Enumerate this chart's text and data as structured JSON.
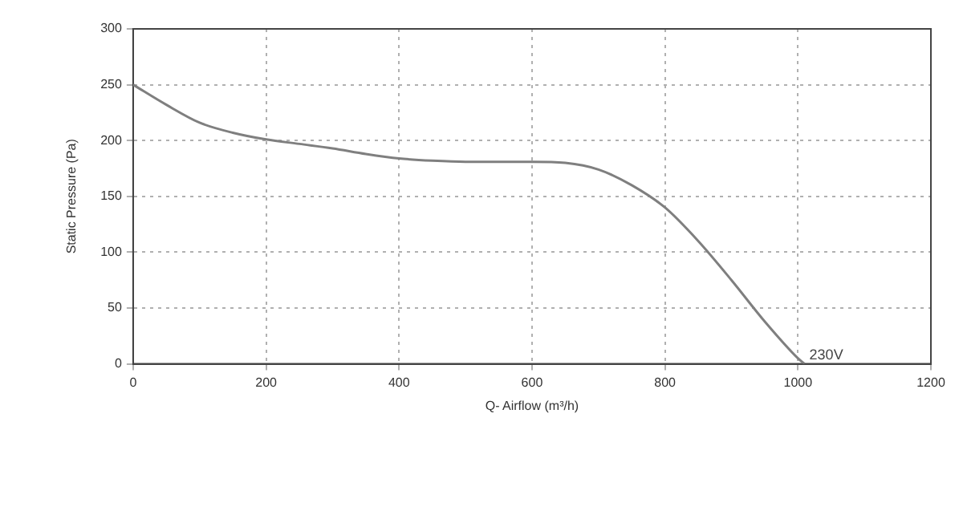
{
  "chart_data": {
    "type": "line",
    "xlabel": "Q- Airflow (m³/h)",
    "ylabel": "Static Pressure (Pa)",
    "x": [
      0,
      50,
      100,
      150,
      200,
      250,
      300,
      350,
      400,
      450,
      500,
      550,
      600,
      650,
      700,
      750,
      800,
      850,
      900,
      950,
      1000,
      1010
    ],
    "series": [
      {
        "color": "#7f7f7f",
        "values": [
          250,
          232,
          216,
          207,
          201,
          197,
          193,
          188,
          184,
          182,
          181,
          181,
          181,
          180,
          174,
          160,
          140,
          110,
          75,
          38,
          5,
          0
        ]
      }
    ],
    "xlim": [
      0,
      1200
    ],
    "xticks": [
      0,
      200,
      400,
      600,
      800,
      1000,
      1200
    ],
    "ylim": [
      0,
      300
    ],
    "yticks": [
      0,
      50,
      100,
      150,
      200,
      250,
      300
    ],
    "grid": true,
    "legend": false,
    "marker": "none",
    "line_style": "solid",
    "annotations": [
      {
        "text": "230V",
        "x": 1010,
        "y": 0
      }
    ]
  }
}
